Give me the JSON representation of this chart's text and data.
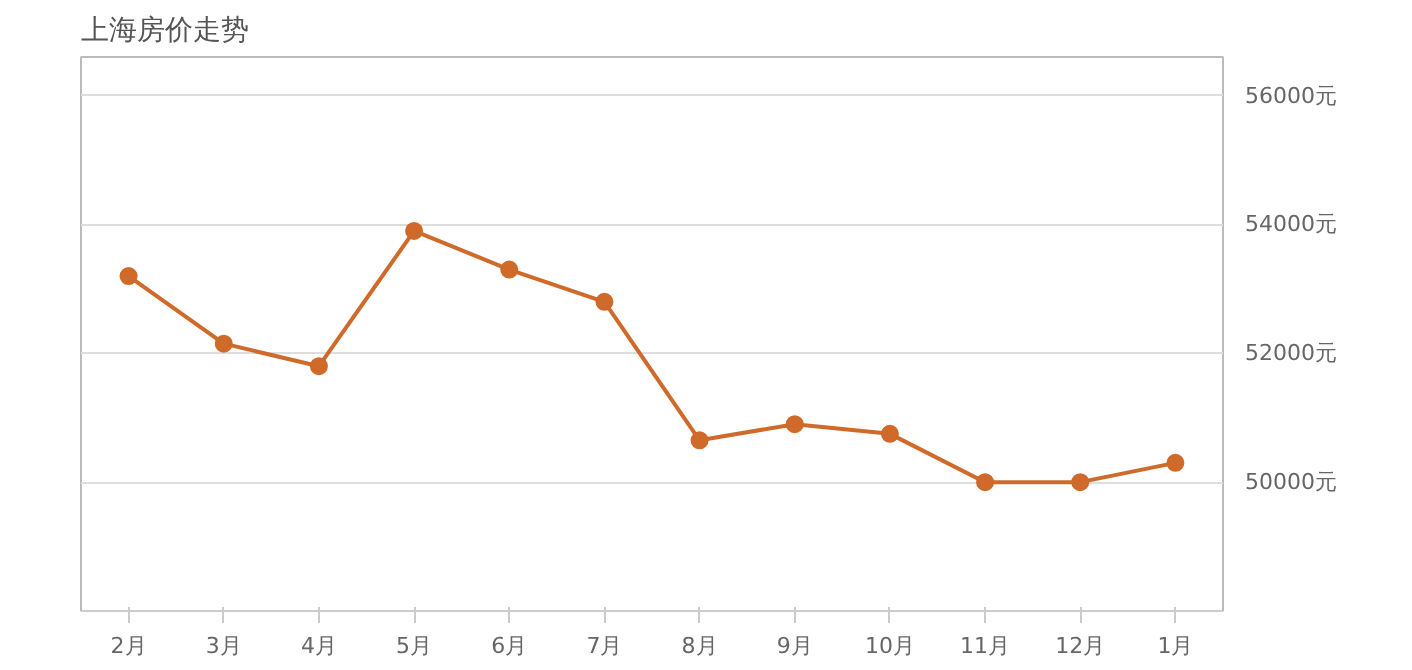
{
  "chart_data": {
    "type": "line",
    "title": "上海房价走势",
    "categories": [
      "2月",
      "3月",
      "4月",
      "5月",
      "6月",
      "7月",
      "8月",
      "9月",
      "10月",
      "11月",
      "12月",
      "1月"
    ],
    "series": [
      {
        "color": "#cf6a2a",
        "values": [
          53200,
          52150,
          51800,
          53900,
          53300,
          52800,
          50650,
          50900,
          50750,
          50000,
          50000,
          50300
        ]
      }
    ],
    "ylim": [
      48000,
      56600
    ],
    "yticks": [
      {
        "value": 50000,
        "label": "50000元"
      },
      {
        "value": 52000,
        "label": "52000元"
      },
      {
        "value": 54000,
        "label": "54000元"
      },
      {
        "value": 56000,
        "label": "56000元"
      }
    ],
    "grid": "y",
    "marker": "circle",
    "line_style": "solid"
  }
}
